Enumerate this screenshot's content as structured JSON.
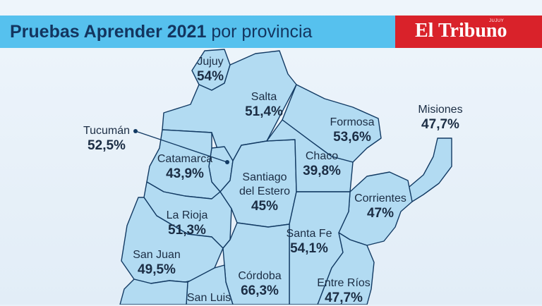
{
  "header": {
    "title_bold": "Pruebas Aprender 2021",
    "title_rest": "por provincia",
    "brand": "El Tribuno",
    "brand_sub": "JUJUY"
  },
  "provinces": {
    "jujuy": {
      "name": "Jujuy",
      "value": "54%"
    },
    "salta": {
      "name": "Salta",
      "value": "51,4%"
    },
    "formosa": {
      "name": "Formosa",
      "value": "53,6%"
    },
    "misiones": {
      "name": "Misiones",
      "value": "47,7%"
    },
    "tucuman": {
      "name": "Tucumán",
      "value": "52,5%"
    },
    "catamarca": {
      "name": "Catamarca",
      "value": "43,9%"
    },
    "chaco": {
      "name": "Chaco",
      "value": "39,8%"
    },
    "santiago": {
      "name1": "Santiago",
      "name2": "del Estero",
      "value": "45%"
    },
    "corrientes": {
      "name": "Corrientes",
      "value": "47%"
    },
    "larioja": {
      "name": "La Rioja",
      "value": "51,3%"
    },
    "santafe": {
      "name": "Santa Fe",
      "value": "54,1%"
    },
    "sanjuan": {
      "name": "San Juan",
      "value": "49,5%"
    },
    "cordoba": {
      "name": "Córdoba",
      "value": "66,3%"
    },
    "entrerios": {
      "name": "Entre Ríos",
      "value": "47,7%"
    },
    "sanluis": {
      "name": "San Luis",
      "value": ""
    }
  },
  "colors": {
    "header": "#56c1ee",
    "brand": "#d9222a",
    "province_fill": "#b2dbf2",
    "border": "#123a63",
    "text": "#1b2d44"
  }
}
